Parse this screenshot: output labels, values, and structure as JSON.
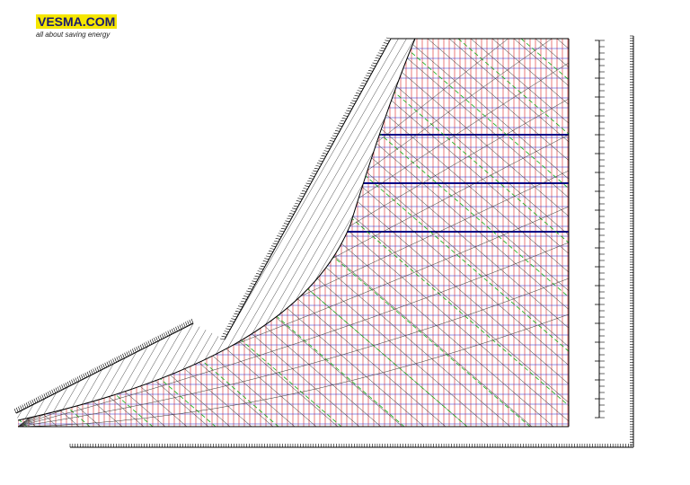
{
  "logo": {
    "title": "VESMA.COM",
    "tagline": "all about saving energy"
  }
}
